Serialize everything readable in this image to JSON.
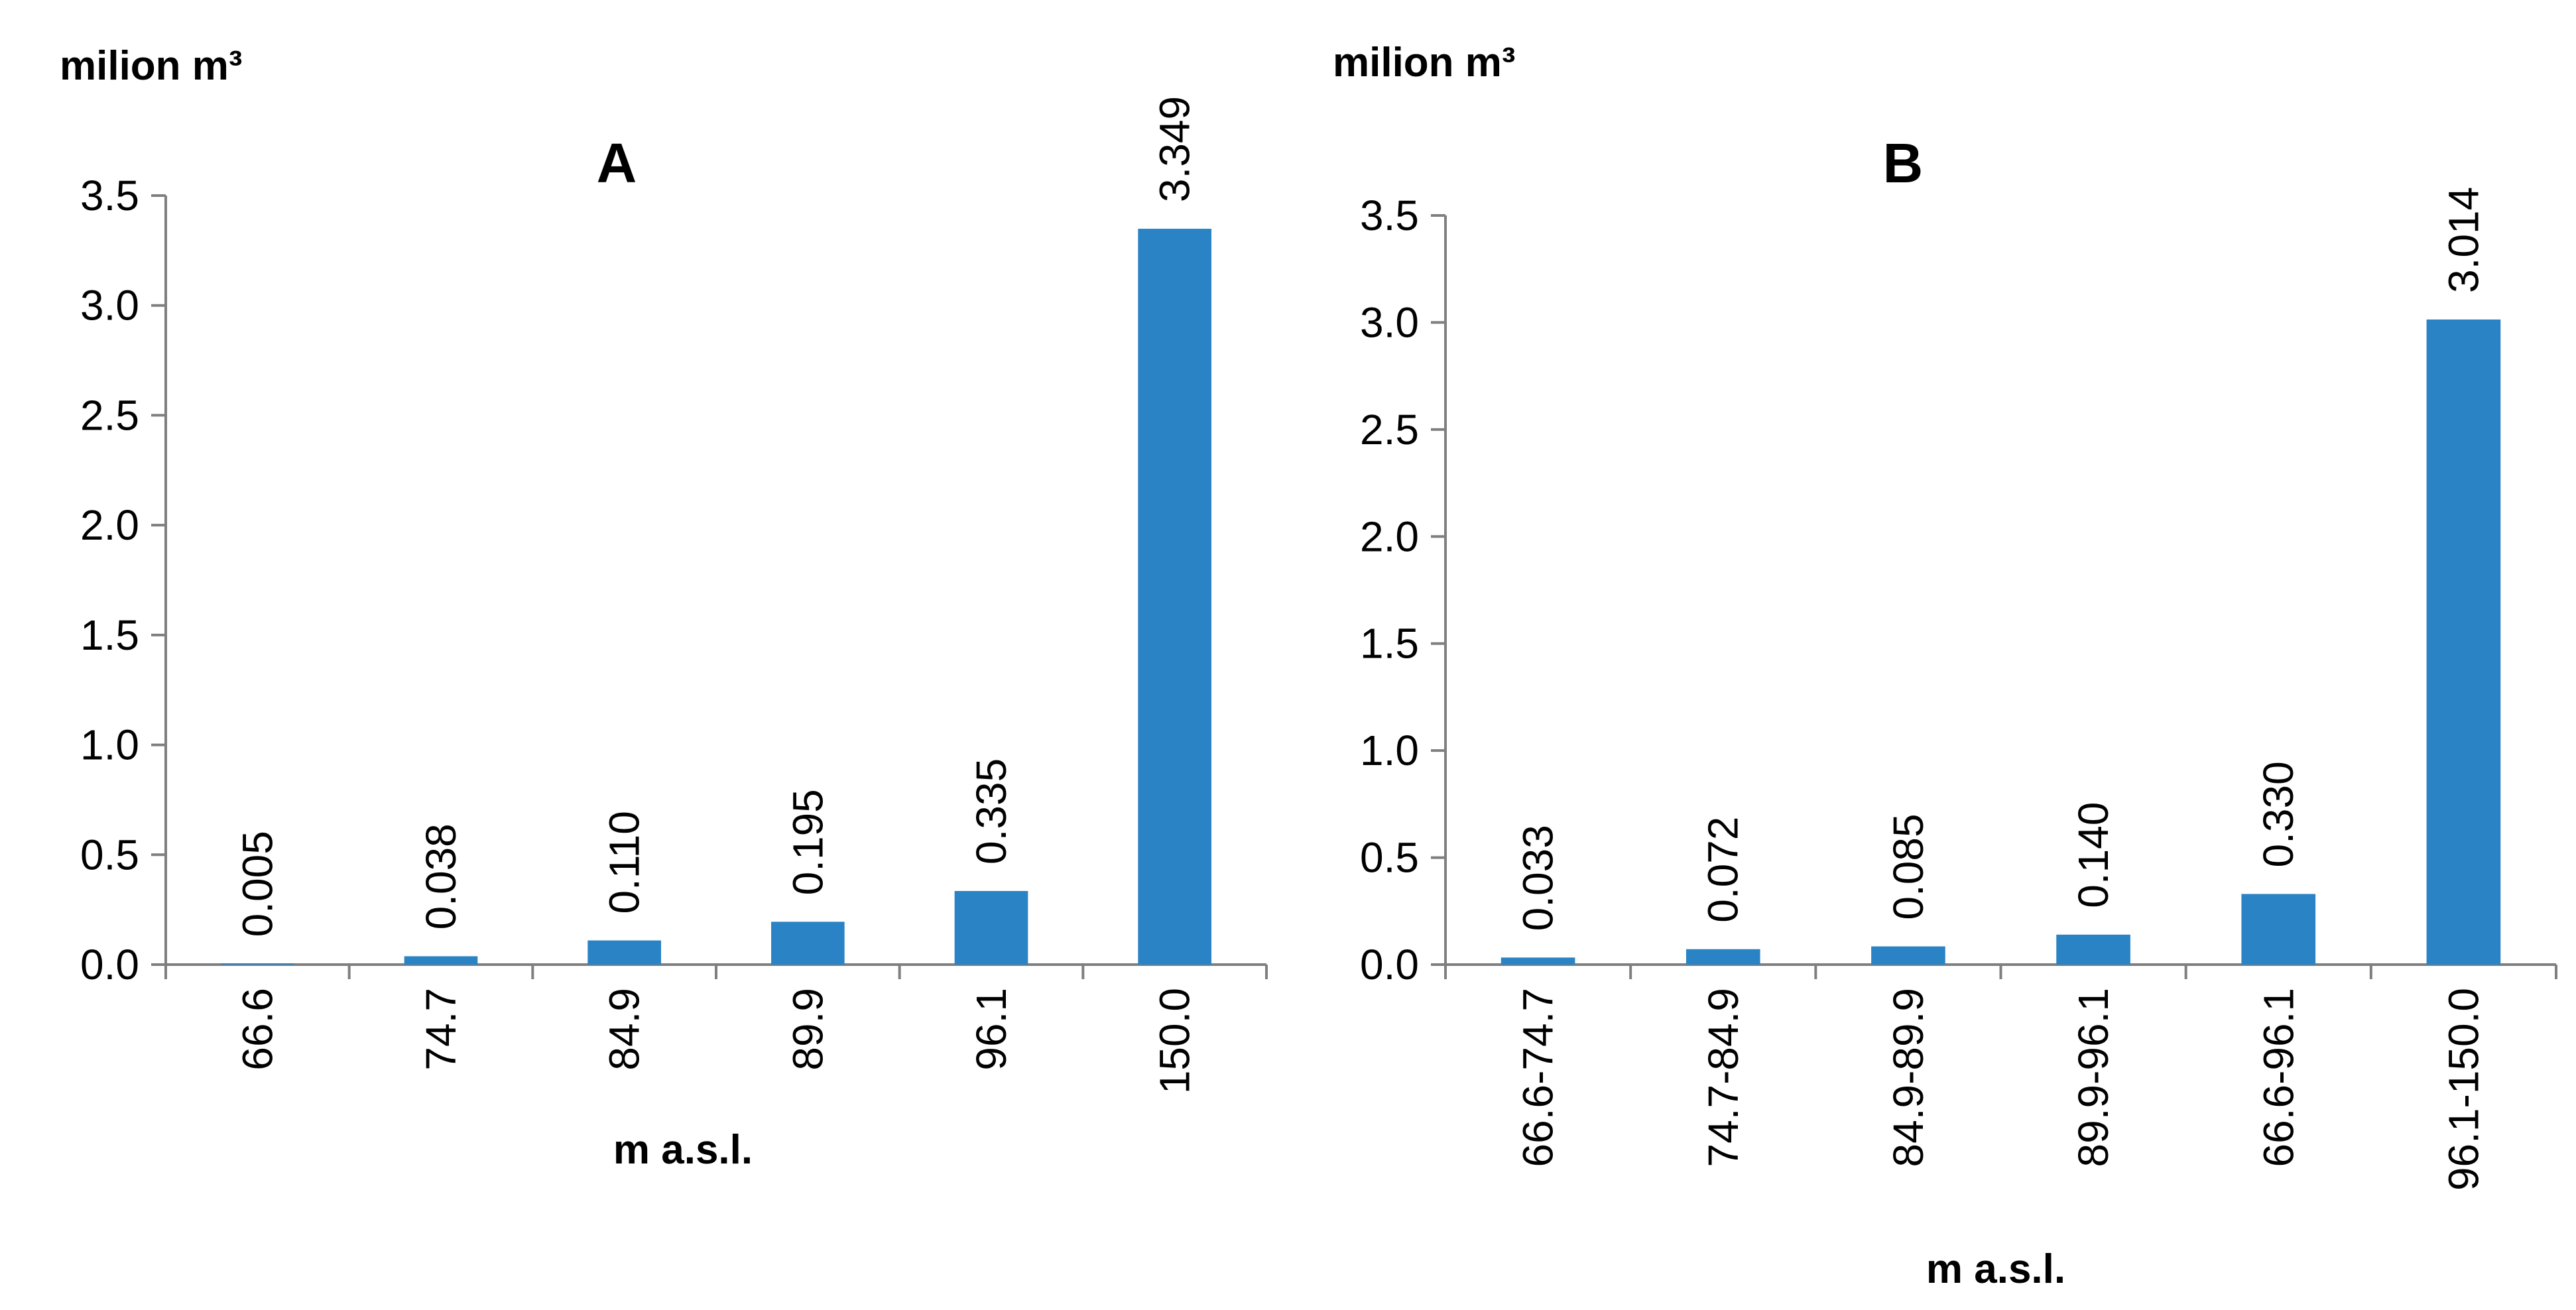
{
  "chart_data": [
    {
      "type": "bar",
      "title": "A",
      "ylabel": "milion m³",
      "xlabel": "m a.s.l.",
      "ylim": [
        0,
        3.5
      ],
      "yticks": [
        "0.0",
        "0.5",
        "1.0",
        "1.5",
        "2.0",
        "2.5",
        "3.0",
        "3.5"
      ],
      "categories": [
        "66.6",
        "74.7",
        "84.9",
        "89.9",
        "96.1",
        "150.0"
      ],
      "values": [
        0.005,
        0.038,
        0.11,
        0.195,
        0.335,
        3.349
      ],
      "value_labels": [
        "0.005",
        "0.038",
        "0.110",
        "0.195",
        "0.335",
        "3.349"
      ],
      "bar_color": "#2a83c4",
      "grid": false,
      "legend": "none"
    },
    {
      "type": "bar",
      "title": "B",
      "ylabel": "milion m³",
      "xlabel": "m a.s.l.",
      "ylim": [
        0,
        3.5
      ],
      "yticks": [
        "0.0",
        "0.5",
        "1.0",
        "1.5",
        "2.0",
        "2.5",
        "3.0",
        "3.5"
      ],
      "categories": [
        "66.6-74.7",
        "74.7-84.9",
        "84.9-89.9",
        "89.9-96.1",
        "66.6-96.1",
        "96.1-150.0"
      ],
      "values": [
        0.033,
        0.072,
        0.085,
        0.14,
        0.33,
        3.014
      ],
      "value_labels": [
        "0.033",
        "0.072",
        "0.085",
        "0.140",
        "0.330",
        "3.014"
      ],
      "bar_color": "#2a83c4",
      "grid": false,
      "legend": "none"
    }
  ]
}
